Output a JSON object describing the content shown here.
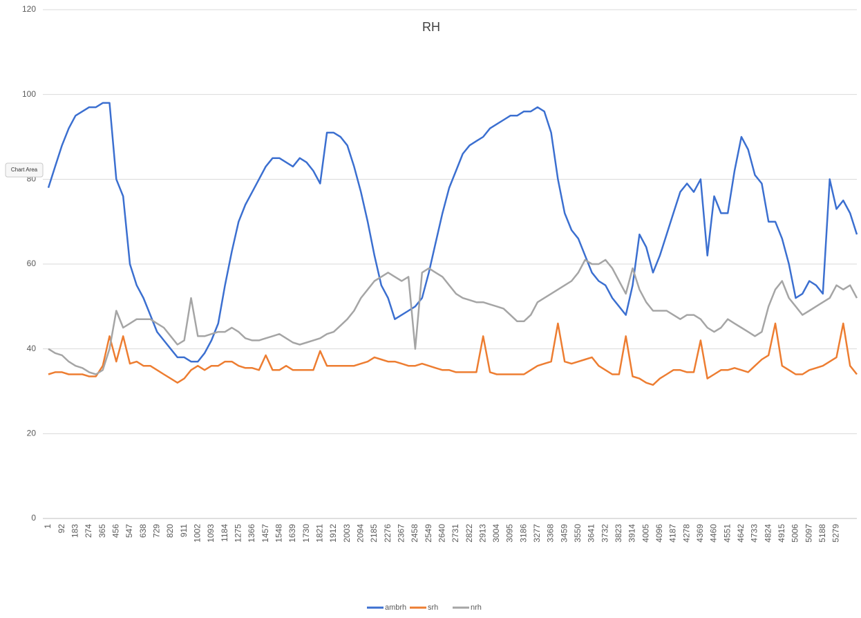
{
  "chart_data": {
    "type": "line",
    "title": "RH",
    "categories": [
      "1",
      null,
      "92",
      null,
      "183",
      null,
      "274",
      null,
      "365",
      null,
      "456",
      null,
      "547",
      null,
      "638",
      null,
      "729",
      null,
      "820",
      null,
      "911",
      null,
      "1002",
      null,
      "1093",
      null,
      "1184",
      null,
      "1275",
      null,
      "1366",
      null,
      "1457",
      null,
      "1548",
      null,
      "1639",
      null,
      "1730",
      null,
      "1821",
      null,
      "1912",
      null,
      "2003",
      null,
      "2094",
      null,
      "2185",
      null,
      "2276",
      null,
      "2367",
      null,
      "2458",
      null,
      "2549",
      null,
      "2640",
      null,
      "2731",
      null,
      "2822",
      null,
      "2913",
      null,
      "3004",
      null,
      "3095",
      null,
      "3186",
      null,
      "3277",
      null,
      "3368",
      null,
      "3459",
      null,
      "3550",
      null,
      "3641",
      null,
      "3732",
      null,
      "3823",
      null,
      "3914",
      null,
      "4005",
      null,
      "4096",
      null,
      "4187",
      null,
      "4278",
      null,
      "4369",
      null,
      "4460",
      null,
      "4551",
      null,
      "4642",
      null,
      "4733",
      null,
      "4824",
      null,
      "4915",
      null,
      "5006",
      null,
      "5097",
      null,
      "5188",
      null,
      "5279",
      null,
      null,
      null
    ],
    "series": [
      {
        "name": "ambrh",
        "color": "#3b6fd0",
        "values": [
          78,
          83,
          88,
          92,
          95,
          96,
          97,
          97,
          98,
          98,
          80,
          76,
          60,
          55,
          52,
          48,
          44,
          42,
          40,
          38,
          38,
          37,
          37,
          39,
          42,
          46,
          55,
          63,
          70,
          74,
          77,
          80,
          83,
          85,
          85,
          84,
          83,
          85,
          84,
          82,
          79,
          91,
          91,
          90,
          88,
          83,
          77,
          70,
          62,
          55,
          52,
          47,
          48,
          49,
          50,
          52,
          58,
          65,
          72,
          78,
          82,
          86,
          88,
          89,
          90,
          92,
          93,
          94,
          95,
          95,
          96,
          96,
          97,
          96,
          91,
          80,
          72,
          68,
          66,
          62,
          58,
          56,
          55,
          52,
          50,
          48,
          55,
          67,
          64,
          58,
          62,
          67,
          72,
          77,
          79,
          77,
          80,
          62,
          76,
          72,
          72,
          82,
          90,
          87,
          81,
          79,
          70,
          70,
          66,
          60,
          52,
          53,
          56,
          55,
          53,
          80,
          73,
          75,
          72,
          67
        ]
      },
      {
        "name": "srh",
        "color": "#ed7d31",
        "values": [
          34,
          34.5,
          34.5,
          34,
          34,
          34,
          33.5,
          33.5,
          36,
          43,
          37,
          43,
          36.5,
          37,
          36,
          36,
          35,
          34,
          33,
          32,
          33,
          35,
          36,
          35,
          36,
          36,
          37,
          37,
          36,
          35.5,
          35.5,
          35,
          38.5,
          35,
          35,
          36,
          35,
          35,
          35,
          35,
          39.5,
          36,
          36,
          36,
          36,
          36,
          36.5,
          37,
          38,
          37.5,
          37,
          37,
          36.5,
          36,
          36,
          36.5,
          36,
          35.5,
          35,
          35,
          34.5,
          34.5,
          34.5,
          34.5,
          43,
          34.5,
          34,
          34,
          34,
          34,
          34,
          35,
          36,
          36.5,
          37,
          46,
          37,
          36.5,
          37,
          37.5,
          38,
          36,
          35,
          34,
          34,
          43,
          33.5,
          33,
          32,
          31.5,
          33,
          34,
          35,
          35,
          34.5,
          34.5,
          42,
          33,
          34,
          35,
          35,
          35.5,
          35,
          34.5,
          36,
          37.5,
          38.5,
          46,
          36,
          35,
          34,
          34,
          35,
          35.5,
          36,
          37,
          38,
          46,
          36,
          34
        ]
      },
      {
        "name": "nrh",
        "color": "#a5a5a5",
        "values": [
          40,
          39,
          38.5,
          37,
          36,
          35.5,
          34.5,
          34,
          35,
          40,
          49,
          45,
          46,
          47,
          47,
          47,
          46,
          45,
          43,
          41,
          42,
          52,
          43,
          43,
          43.5,
          44,
          44,
          45,
          44,
          42.5,
          42,
          42,
          42.5,
          43,
          43.5,
          42.5,
          41.5,
          41,
          41.5,
          42,
          42.5,
          43.5,
          44,
          45.5,
          47,
          49,
          52,
          54,
          56,
          57,
          58,
          57,
          56,
          57,
          40,
          58,
          59,
          58,
          57,
          55,
          53,
          52,
          51.5,
          51,
          51,
          50.5,
          50,
          49.5,
          48,
          46.5,
          46.5,
          48,
          51,
          52,
          53,
          54,
          55,
          56,
          58,
          61,
          60,
          60,
          61,
          59,
          56,
          53,
          59,
          54,
          51,
          49,
          49,
          49,
          48,
          47,
          48,
          48,
          47,
          45,
          44,
          45,
          47,
          46,
          45,
          44,
          43,
          44,
          50,
          54,
          56,
          52,
          50,
          48,
          49,
          50,
          51,
          52,
          55,
          54,
          55,
          52
        ]
      }
    ],
    "ylim": [
      0,
      120
    ],
    "yticks": [
      0,
      20,
      40,
      60,
      80,
      100,
      120
    ],
    "grid": true,
    "legend": "bottom"
  },
  "tooltip": "Chart Area"
}
